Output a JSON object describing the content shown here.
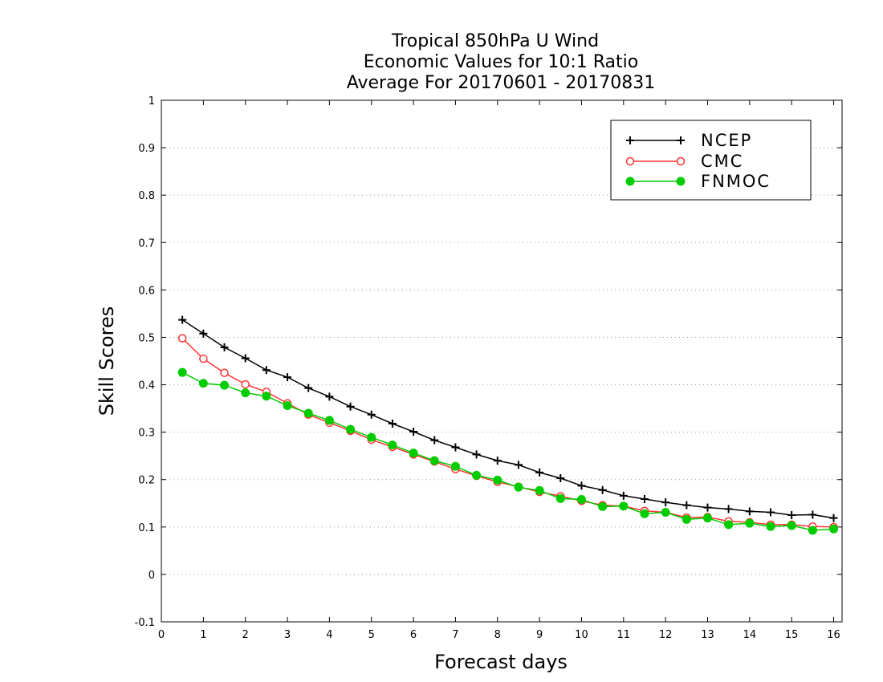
{
  "chart_data": {
    "type": "line",
    "title_lines": [
      "Tropical 850hPa U Wind",
      "Economic Values for 10:1 Ratio",
      "Average For 20170601 - 20170831"
    ],
    "xlabel": "Forecast days",
    "ylabel": "Skill Scores",
    "xlim": [
      0,
      16.2
    ],
    "ylim": [
      -0.1,
      1
    ],
    "xticks": [
      0,
      1,
      2,
      3,
      4,
      5,
      6,
      7,
      8,
      9,
      10,
      11,
      12,
      13,
      14,
      15,
      16
    ],
    "yticks": [
      -0.1,
      0,
      0.1,
      0.2,
      0.3,
      0.4,
      0.5,
      0.6,
      0.7,
      0.8,
      0.9,
      1
    ],
    "ytick_labels": [
      "-0.1",
      "0",
      "0.1",
      "0.2",
      "0.3",
      "0.4",
      "0.5",
      "0.6",
      "0.7",
      "0.8",
      "0.9",
      "1"
    ],
    "grid": "horizontal dotted",
    "legend_position": "top-right",
    "x": [
      0.5,
      1.0,
      1.5,
      2.0,
      2.5,
      3.0,
      3.5,
      4.0,
      4.5,
      5.0,
      5.5,
      6.0,
      6.5,
      7.0,
      7.5,
      8.0,
      8.5,
      9.0,
      9.5,
      10.0,
      10.5,
      11.0,
      11.5,
      12.0,
      12.5,
      13.0,
      13.5,
      14.0,
      14.5,
      15.0,
      15.5,
      16.0
    ],
    "series": [
      {
        "name": "NCEP",
        "color": "#000000",
        "marker": "plus",
        "values": [
          0.537,
          0.508,
          0.479,
          0.456,
          0.431,
          0.416,
          0.393,
          0.375,
          0.354,
          0.337,
          0.318,
          0.301,
          0.283,
          0.268,
          0.253,
          0.24,
          0.231,
          0.215,
          0.203,
          0.187,
          0.178,
          0.166,
          0.159,
          0.152,
          0.146,
          0.141,
          0.138,
          0.133,
          0.131,
          0.125,
          0.126,
          0.119
        ]
      },
      {
        "name": "CMC",
        "color": "#ff3333",
        "marker": "open-circle",
        "values": [
          0.498,
          0.455,
          0.425,
          0.401,
          0.385,
          0.361,
          0.337,
          0.32,
          0.303,
          0.284,
          0.269,
          0.253,
          0.238,
          0.222,
          0.208,
          0.195,
          0.185,
          0.174,
          0.165,
          0.155,
          0.146,
          0.144,
          0.134,
          0.131,
          0.12,
          0.121,
          0.112,
          0.11,
          0.105,
          0.105,
          0.101,
          0.1
        ]
      },
      {
        "name": "FNMOC",
        "color": "#00cc00",
        "marker": "filled-circle",
        "values": [
          0.426,
          0.403,
          0.399,
          0.383,
          0.376,
          0.356,
          0.34,
          0.325,
          0.306,
          0.289,
          0.273,
          0.256,
          0.24,
          0.228,
          0.209,
          0.199,
          0.184,
          0.177,
          0.16,
          0.158,
          0.143,
          0.144,
          0.128,
          0.131,
          0.116,
          0.119,
          0.105,
          0.108,
          0.101,
          0.103,
          0.093,
          0.096
        ]
      }
    ]
  }
}
